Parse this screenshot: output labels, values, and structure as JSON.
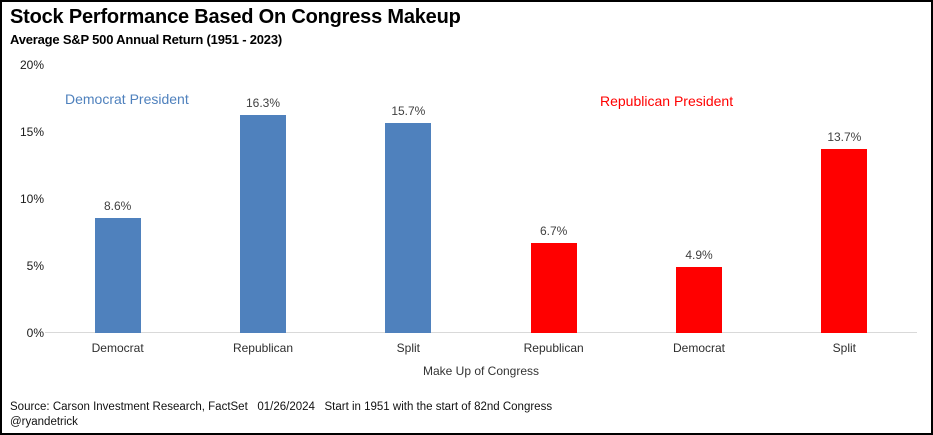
{
  "chart_data": {
    "type": "bar",
    "title": "Stock Performance Based On Congress Makeup",
    "subtitle": "Average S&P 500 Annual Return (1951 - 2023)",
    "xlabel": "Make Up of Congress",
    "ylim": [
      0,
      20
    ],
    "ytick_values": [
      0,
      5,
      10,
      15,
      20
    ],
    "ytick_labels": [
      "0%",
      "5%",
      "10%",
      "15%",
      "20%"
    ],
    "grid": false,
    "legend_position": "inside-top",
    "categories": [
      "Democrat",
      "Republican",
      "Split",
      "Republican",
      "Democrat",
      "Split"
    ],
    "series": [
      {
        "name": "Democrat President",
        "color": "#4F81BD",
        "categories": [
          "Democrat",
          "Republican",
          "Split"
        ],
        "values": [
          8.6,
          16.3,
          15.7
        ],
        "value_labels": [
          "8.6%",
          "16.3%",
          "15.7%"
        ]
      },
      {
        "name": "Republican President",
        "color": "#FF0000",
        "categories": [
          "Republican",
          "Democrat",
          "Split"
        ],
        "values": [
          6.7,
          4.9,
          13.7
        ],
        "value_labels": [
          "6.7%",
          "4.9%",
          "13.7%"
        ]
      }
    ]
  },
  "footer": {
    "source_line": "Source: Carson Investment Research, FactSet   01/26/2024   Start in 1951 with the start of 82nd Congress",
    "handle": "@ryandetrick"
  }
}
